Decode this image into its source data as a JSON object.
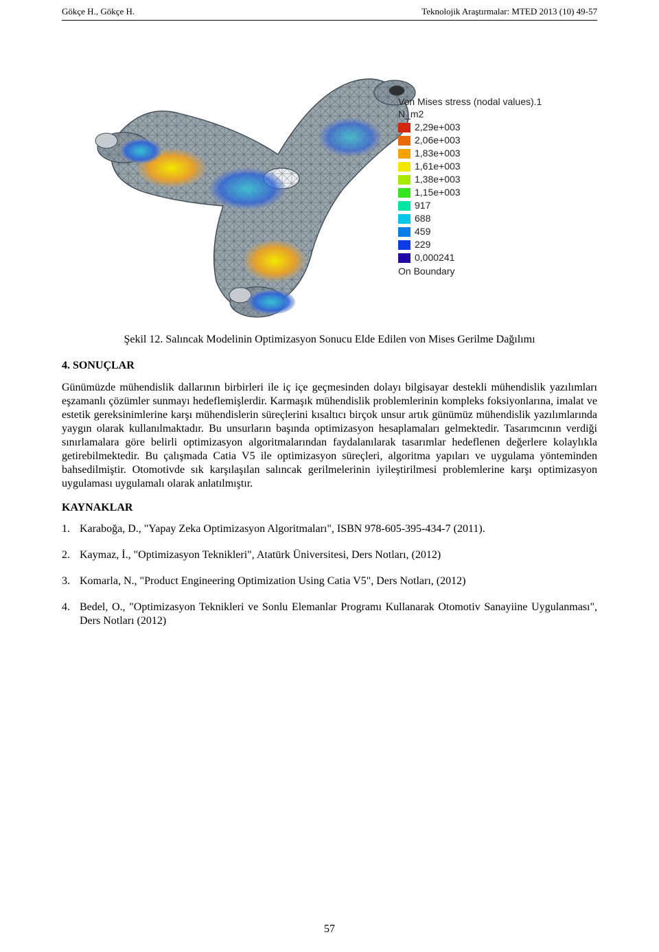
{
  "header": {
    "left": "Gökçe H., Gökçe H.",
    "right": "Teknolojik Araştırmalar: MTED 2013 (10) 49-57"
  },
  "figure": {
    "caption": "Şekil 12. Salıncak Modelinin Optimizasyon Sonucu Elde Edilen von Mises Gerilme Dağılımı",
    "legend": {
      "title1": "Von Mises stress (nodal values).1",
      "title2": "N_m2",
      "entries": [
        {
          "label": "2,29e+003",
          "color": "#d3260e"
        },
        {
          "label": "2,06e+003",
          "color": "#e9680c"
        },
        {
          "label": "1,83e+003",
          "color": "#f3a204"
        },
        {
          "label": "1,61e+003",
          "color": "#f3e600"
        },
        {
          "label": "1,38e+003",
          "color": "#a7ea00"
        },
        {
          "label": "1,15e+003",
          "color": "#36e41f"
        },
        {
          "label": "917",
          "color": "#00e6a2"
        },
        {
          "label": "688",
          "color": "#00c7e6"
        },
        {
          "label": "459",
          "color": "#0a7de6"
        },
        {
          "label": "229",
          "color": "#0c3ae6"
        },
        {
          "label": "0,000241",
          "color": "#2206a6"
        }
      ],
      "footer": "On Boundary"
    },
    "mesh_colors": {
      "base": "#9aa4ab",
      "wire": "#3d4a55",
      "warm1": "#e9ea55",
      "warm2": "#e59f2e",
      "cool1": "#2ec7d9",
      "cool2": "#2d62d9"
    }
  },
  "sections": {
    "results_heading": "4. SONUÇLAR",
    "results_body": "Günümüzde mühendislik dallarının birbirleri ile iç içe geçmesinden dolayı bilgisayar destekli mühendislik yazılımları eşzamanlı çözümler sunmayı hedeflemişlerdir. Karmaşık mühendislik problemlerinin kompleks foksiyonlarına, imalat ve estetik gereksinimlerine karşı mühendislerin süreçlerini kısaltıcı birçok unsur artık günümüz mühendislik yazılımlarında yaygın olarak kullanılmaktadır. Bu unsurların başında optimizasyon hesaplamaları gelmektedir. Tasarımcının verdiği sınırlamalara göre belirli optimizasyon algoritmalarından faydalanılarak tasarımlar hedeflenen değerlere kolaylıkla getirebilmektedir. Bu çalışmada Catia V5 ile optimizasyon süreçleri, algoritma yapıları ve uygulama yönteminden bahsedilmiştir. Otomotivde sık karşılaşılan salıncak gerilmelerinin iyileştirilmesi problemlerine karşı optimizasyon uygulaması uygulamalı olarak anlatılmıştır.",
    "refs_heading": "KAYNAKLAR",
    "references": [
      {
        "num": "1.",
        "text": "Karaboğa, D., \"Yapay Zeka Optimizasyon Algoritmaları\", ISBN 978-605-395-434-7 (2011)."
      },
      {
        "num": "2.",
        "text": "Kaymaz, İ., \"Optimizasyon Teknikleri\", Atatürk Üniversitesi, Ders Notları, (2012)"
      },
      {
        "num": "3.",
        "text": "Komarla, N., \"Product Engineering Optimization Using Catia V5\", Ders Notları, (2012)"
      },
      {
        "num": "4.",
        "text": "Bedel, O., \"Optimizasyon Teknikleri ve Sonlu Elemanlar Programı Kullanarak Otomotiv Sanayiine Uygulanması\", Ders Notları (2012)"
      }
    ]
  },
  "page_number": "57"
}
